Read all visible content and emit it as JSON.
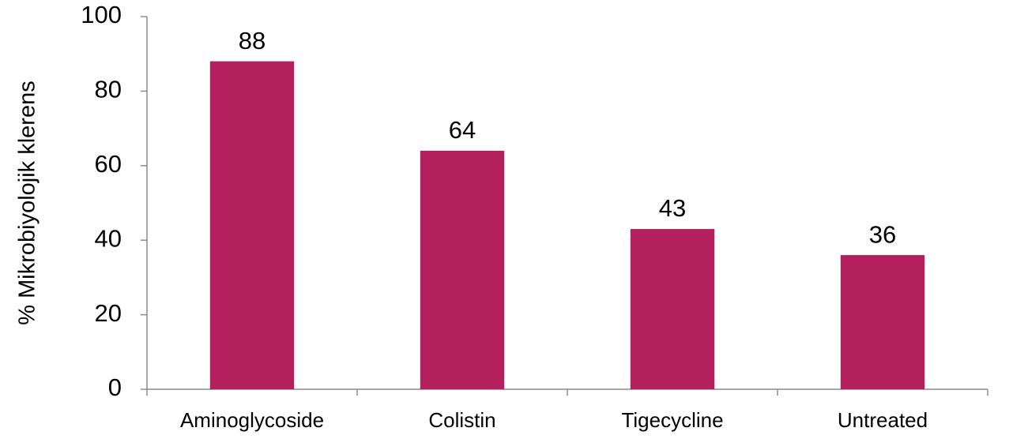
{
  "chart_data": {
    "type": "bar",
    "y_label": "% Mikrobiyolojik klerens",
    "categories": [
      "Aminoglycoside",
      "Colistin",
      "Tigecycline",
      "Untreated"
    ],
    "values": [
      88,
      64,
      43,
      36
    ],
    "color": "#b41f5e",
    "ylim": [
      0,
      100
    ],
    "yticks": [
      0,
      20,
      40,
      60,
      80,
      100
    ],
    "grid": false,
    "data_labels": true
  }
}
